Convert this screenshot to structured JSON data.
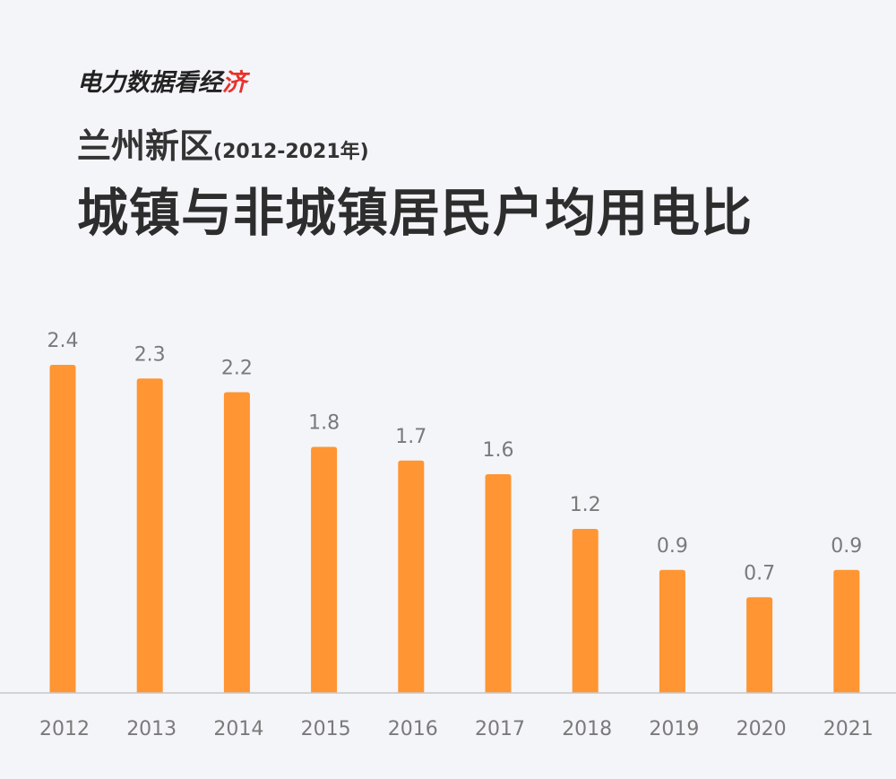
{
  "header": {
    "brand_main": "电力数据看经",
    "brand_accent": "济",
    "region": "兰州新区",
    "years": "(2012-2021年)",
    "title": "城镇与非城镇居民户均用电比"
  },
  "colors": {
    "bar": "#ff9533",
    "background": "#f4f5f9",
    "axis": "#c8c8c8",
    "label": "#7a7a7a",
    "brand_accent": "#e8322b"
  },
  "chart_data": {
    "type": "bar",
    "title": "城镇与非城镇居民户均用电比",
    "categories": [
      "2012",
      "2013",
      "2014",
      "2015",
      "2016",
      "2017",
      "2018",
      "2019",
      "2020",
      "2021"
    ],
    "values": [
      2.4,
      2.3,
      2.2,
      1.8,
      1.7,
      1.6,
      1.2,
      0.9,
      0.7,
      0.9
    ],
    "value_labels": [
      "2.4",
      "2.3",
      "2.2",
      "1.8",
      "1.7",
      "1.6",
      "1.2",
      "0.9",
      "0.7",
      "0.9"
    ],
    "xlabel": "",
    "ylabel": "",
    "ylim": [
      0,
      2.4
    ],
    "grid": false,
    "legend": "none"
  }
}
